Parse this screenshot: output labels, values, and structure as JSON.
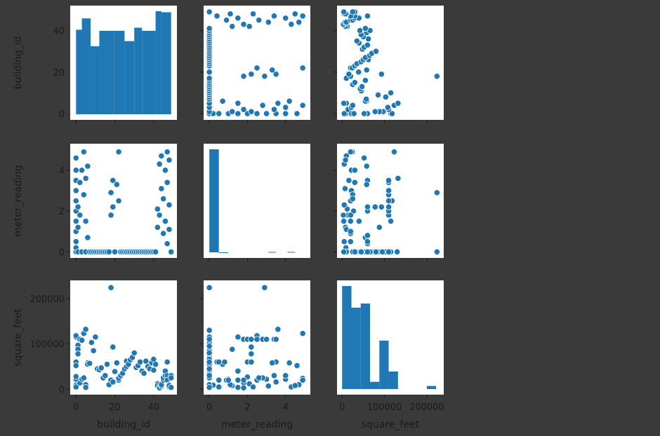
{
  "chart_data": {
    "type": "scatter",
    "kind": "pairplot",
    "variables": [
      "building_id",
      "meter_reading",
      "square_feet"
    ],
    "color": "#1f77b4",
    "background": "#3a3a3a",
    "grid": false,
    "axes": {
      "building_id": {
        "range": [
          -3,
          52
        ],
        "ticks": [
          0,
          20,
          40
        ]
      },
      "meter_reading": {
        "range": [
          -0.3,
          5.3
        ],
        "ticks": [
          0,
          2,
          4
        ]
      },
      "square_feet": {
        "range": [
          -12000,
          240000
        ],
        "ticks": [
          0,
          100000,
          200000
        ],
        "tick_labels": [
          "0",
          "100000",
          "200000"
        ]
      }
    },
    "histograms": {
      "building_id": {
        "bins": [
          [
            0,
            3,
            41
          ],
          [
            3,
            7.5,
            46.5
          ],
          [
            7.5,
            12,
            33
          ],
          [
            12,
            19.5,
            40.5
          ],
          [
            19.5,
            25,
            40.5
          ],
          [
            25,
            30,
            35.5
          ],
          [
            30,
            34,
            42
          ],
          [
            34,
            41,
            40.5
          ],
          [
            41,
            44,
            50
          ],
          [
            44,
            49,
            49.5
          ]
        ]
      },
      "meter_reading": {
        "bins": [
          [
            0,
            0.5,
            100
          ],
          [
            0.5,
            1.0,
            0
          ],
          [
            3.1,
            3.5,
            0.4
          ],
          [
            4.1,
            4.5,
            0.4
          ]
        ]
      },
      "square_feet": {
        "bins": [
          [
            0,
            22000,
            100
          ],
          [
            22000,
            44000,
            79
          ],
          [
            44000,
            66000,
            83
          ],
          [
            66000,
            88000,
            7
          ],
          [
            88000,
            110000,
            47
          ],
          [
            110000,
            132000,
            17
          ],
          [
            200000,
            222000,
            3
          ]
        ]
      }
    },
    "points": {
      "building_id": [
        0,
        0,
        0,
        0,
        0,
        0,
        0,
        0,
        0,
        0,
        0,
        1,
        1,
        1,
        2,
        2,
        3,
        3,
        4,
        4,
        5,
        5,
        5,
        6,
        6,
        7,
        8,
        9,
        10,
        11,
        12,
        13,
        14,
        15,
        16,
        17,
        18,
        18,
        19,
        19,
        20,
        21,
        22,
        22,
        23,
        24,
        25,
        26,
        26,
        27,
        28,
        29,
        30,
        31,
        32,
        33,
        34,
        35,
        36,
        37,
        38,
        39,
        40,
        40,
        41,
        42,
        42,
        43,
        43,
        44,
        44,
        45,
        45,
        46,
        46,
        47,
        47,
        47,
        48,
        48,
        48,
        49,
        49,
        49
      ],
      "meter_reading": [
        0,
        0.2,
        0.5,
        1,
        1.5,
        2,
        2.5,
        3,
        3.5,
        4,
        4.6,
        0,
        1.2,
        2.2,
        1.8,
        3.4,
        4.0,
        0,
        2.8,
        4.9,
        0,
        1.5,
        3.6,
        4.2,
        0.7,
        0,
        0,
        0,
        0,
        0,
        0,
        0,
        0,
        0,
        0,
        0,
        1.8,
        2.9,
        2.2,
        3.5,
        0,
        3.3,
        2.5,
        4.9,
        0,
        0,
        0,
        0,
        0,
        0,
        0,
        0,
        0,
        0,
        0,
        0,
        0,
        0,
        0,
        0,
        0,
        0,
        0,
        0,
        0,
        2.1,
        1.2,
        4.3,
        1.8,
        3.1,
        4.7,
        0.9,
        2.6,
        4.0,
        1.5,
        0.4,
        3.4,
        4.9,
        1.1,
        2.3,
        4.5,
        0,
        0,
        0
      ],
      "square_feet": [
        6000,
        9000,
        5000,
        22000,
        115000,
        27000,
        118000,
        22000,
        60000,
        28000,
        52000,
        97000,
        88000,
        78000,
        14000,
        110000,
        22000,
        108000,
        25000,
        123000,
        10000,
        4000,
        132000,
        58000,
        55000,
        57000,
        103000,
        85000,
        115000,
        45000,
        43000,
        47000,
        25000,
        30000,
        55000,
        10000,
        20000,
        224000,
        93000,
        16000,
        39000,
        58000,
        20000,
        24000,
        30000,
        35000,
        45000,
        62000,
        50000,
        55000,
        65000,
        70000,
        80000,
        48000,
        52000,
        60000,
        40000,
        35000,
        62000,
        50000,
        45000,
        58000,
        42000,
        66000,
        55000,
        12000,
        8000,
        5000,
        3000,
        7000,
        10000,
        20000,
        25000,
        30000,
        40000,
        60000,
        30000,
        20000,
        10000,
        5000,
        8000,
        4000,
        30000,
        25000
      ]
    },
    "extra_points": {
      "meter_square": [
        [
          1.8,
          110000
        ],
        [
          2.0,
          110000
        ],
        [
          2.2,
          110000
        ],
        [
          2.5,
          110000
        ],
        [
          2.8,
          110000
        ],
        [
          3.0,
          110000
        ],
        [
          3.5,
          110000
        ],
        [
          0.5,
          60000
        ],
        [
          0.8,
          60000
        ],
        [
          2.0,
          60000
        ],
        [
          2.2,
          60000
        ],
        [
          0.5,
          20000
        ],
        [
          1.0,
          20000
        ],
        [
          1.5,
          20000
        ],
        [
          0,
          130000
        ],
        [
          0,
          110000
        ],
        [
          0,
          95000
        ],
        [
          0,
          80000
        ],
        [
          0,
          60000
        ],
        [
          0,
          45000
        ],
        [
          0,
          30000
        ],
        [
          0,
          224000
        ]
      ]
    }
  }
}
